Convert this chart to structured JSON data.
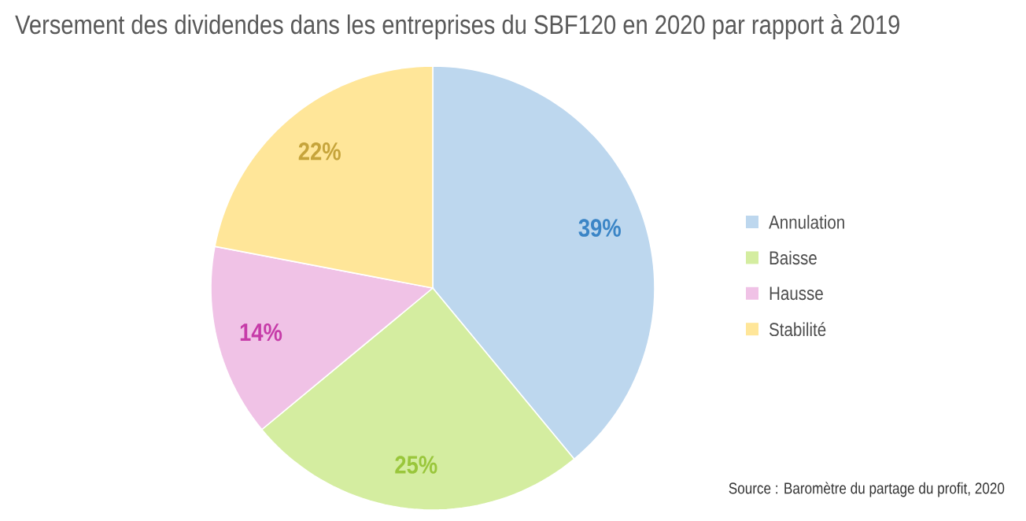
{
  "chart_data": {
    "type": "pie",
    "title": "Versement des dividendes dans les entreprises du SBF120 en 2020 par rapport à 2019",
    "categories": [
      "Annulation",
      "Baisse",
      "Hausse",
      "Stabilité"
    ],
    "values": [
      39,
      25,
      14,
      22
    ],
    "value_labels": [
      "39%",
      "25%",
      "14%",
      "22%"
    ],
    "colors": [
      "#bdd7ee",
      "#d4eda0",
      "#f0c2e6",
      "#ffe699"
    ],
    "legend": "right",
    "annotations": [
      "Source : Baromètre du partage du profit, 2020"
    ]
  }
}
